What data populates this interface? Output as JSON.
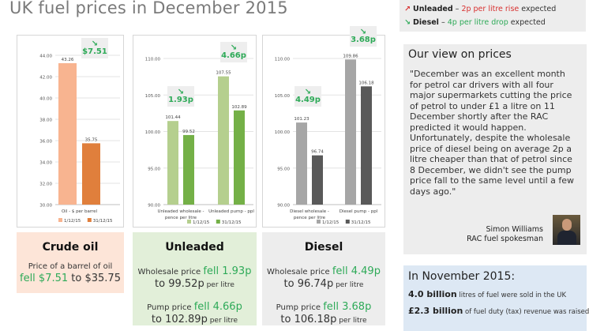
{
  "page": {
    "title": "UK fuel prices in December 2015"
  },
  "legend": {
    "unleaded_arrow": "↗",
    "unleaded_label": "Unleaded",
    "unleaded_dash": " – ",
    "unleaded_change": "2p per litre rise",
    "unleaded_suffix": " expected",
    "diesel_arrow": "↘",
    "diesel_label": "Diesel",
    "diesel_dash": " – ",
    "diesel_change": "4p per litre drop",
    "diesel_suffix": " expected",
    "rise_color": "#d8302f",
    "drop_color": "#2eaa58"
  },
  "chart_data": [
    {
      "type": "bar",
      "id": "crude",
      "categories": [
        "Oil - $ per barrel"
      ],
      "series": [
        {
          "name": "1/12/15",
          "values": [
            43.26
          ],
          "labels": [
            "43.26"
          ],
          "color": "#f8b490"
        },
        {
          "name": "31/12/15",
          "values": [
            35.75
          ],
          "labels": [
            "35.75"
          ],
          "color": "#e07f3c"
        }
      ],
      "ylim": [
        30,
        44
      ],
      "yticks": [
        "30.00",
        "32.00",
        "34.00",
        "36.00",
        "38.00",
        "40.00",
        "42.00",
        "44.00"
      ],
      "ytick_values": [
        30,
        32,
        34,
        36,
        38,
        40,
        42,
        44
      ],
      "grid": true,
      "legend": "bottom",
      "badge": {
        "arrow": "↘",
        "value": "$7.51"
      }
    },
    {
      "type": "bar",
      "id": "unleaded",
      "categories": [
        "Unleaded wholesale - pence per litre",
        "Unleaded pump - ppl"
      ],
      "series": [
        {
          "name": "1/12/15",
          "values": [
            101.44,
            107.55
          ],
          "labels": [
            "101.44",
            "107.55"
          ],
          "color": "#b5cf8e"
        },
        {
          "name": "31/12/15",
          "values": [
            99.52,
            102.89
          ],
          "labels": [
            "99.52",
            "102.89"
          ],
          "color": "#74b047"
        }
      ],
      "ylim": [
        90,
        110
      ],
      "yticks": [
        "90.00",
        "95.00",
        "100.00",
        "105.00",
        "110.00"
      ],
      "ytick_values": [
        90,
        95,
        100,
        105,
        110
      ],
      "grid": true,
      "legend": "bottom",
      "badges": [
        {
          "arrow": "↘",
          "value": "1.93p"
        },
        {
          "arrow": "↘",
          "value": "4.66p"
        }
      ]
    },
    {
      "type": "bar",
      "id": "diesel",
      "categories": [
        "Diesel wholesale - pence per litre",
        "Diesel pump - ppl"
      ],
      "series": [
        {
          "name": "1/12/15",
          "values": [
            101.23,
            109.86
          ],
          "labels": [
            "101.23",
            "109.86"
          ],
          "color": "#a6a6a6"
        },
        {
          "name": "31/12/15",
          "values": [
            96.74,
            106.18
          ],
          "labels": [
            "96.74",
            "106.18"
          ],
          "color": "#595959"
        }
      ],
      "ylim": [
        90,
        110
      ],
      "yticks": [
        "90.00",
        "95.00",
        "100.00",
        "105.00",
        "110.00"
      ],
      "ytick_values": [
        90,
        95,
        100,
        105,
        110
      ],
      "grid": true,
      "legend": "bottom",
      "badges": [
        {
          "arrow": "↘",
          "value": "4.49p"
        },
        {
          "arrow": "↘",
          "value": "3.68p"
        }
      ]
    }
  ],
  "panels": {
    "crude": {
      "title": "Crude oil",
      "line1": "Price of a barrel of oil",
      "fell": "fell $7.51",
      "to": " to ",
      "value": "$35.75",
      "bg": "#fde5d8"
    },
    "unleaded": {
      "title": "Unleaded",
      "w_prefix": "Wholesale price ",
      "w_fell": "fell 1.93p",
      "w_to": "to ",
      "w_value": "99.52p",
      "w_unit": " per litre",
      "p_prefix": "Pump price ",
      "p_fell": "fell 4.66p",
      "p_to": "to ",
      "p_value": "102.89p",
      "p_unit": " per litre",
      "bg": "#e2efd9"
    },
    "diesel": {
      "title": "Diesel",
      "w_prefix": "Wholesale price ",
      "w_fell": "fell 4.49p",
      "w_to": "to ",
      "w_value": "96.74p",
      "w_unit": " per litre",
      "p_prefix": "Pump price ",
      "p_fell": "fell 3.68p",
      "p_to": "to ",
      "p_value": "106.18p",
      "p_unit": " per litre",
      "bg": "#ededed"
    }
  },
  "view": {
    "title": "Our view on prices",
    "quote": "\"December was an excellent month for petrol car drivers with all four major supermarkets cutting the price of petrol to under £1 a litre on 11 December shortly after the RAC predicted it would happen. Unfortunately, despite the wholesale price of diesel being on average 2p a litre cheaper than that of petrol since 8 December, we didn't see the pump price fall to the same level until a few days ago.\"",
    "name": "Simon Williams",
    "role": "RAC fuel spokesman"
  },
  "november": {
    "title": "In November 2015:",
    "stat1_value": "4.0 billion",
    "stat1_text": " litres of fuel were sold in the UK",
    "stat2_value": "£2.3 billion",
    "stat2_text": " of fuel duty (tax) revenue was raised"
  }
}
